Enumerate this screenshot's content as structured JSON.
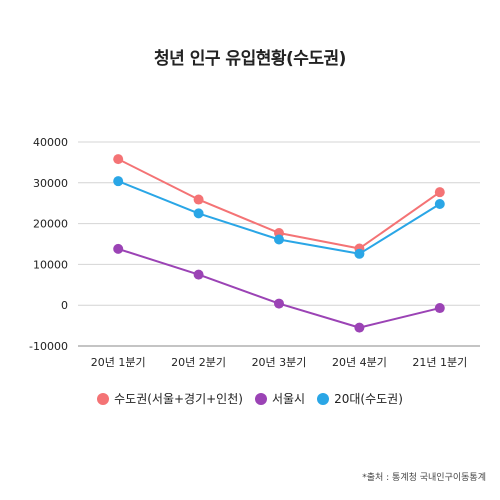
{
  "colors": {
    "accent_red": "#f47375",
    "accent_purple": "#9b43b5",
    "accent_blue": "#2aa6e6"
  },
  "source_note": "*출처 : 통계청 국내인구이동통계",
  "chart_data": {
    "type": "line",
    "title": "청년 인구 유입현황(수도권)",
    "categories": [
      "20년 1분기",
      "20년 2분기",
      "20년 3분기",
      "20년 4분기",
      "21년 1분기"
    ],
    "yticks": [
      "40000",
      "30000",
      "20000",
      "10000",
      "0",
      "-10000"
    ],
    "ylim": [
      -10000,
      40000
    ],
    "grid": true,
    "legend_position": "bottom",
    "series": [
      {
        "name": "수도권(서울+경기+인천)",
        "color": "#f47375",
        "values": [
          35800,
          25900,
          17700,
          13900,
          27700
        ]
      },
      {
        "name": "서울시",
        "color": "#9b43b5",
        "values": [
          13800,
          7500,
          400,
          -5500,
          -700
        ]
      },
      {
        "name": "20대(수도권)",
        "color": "#2aa6e6",
        "values": [
          30400,
          22500,
          16100,
          12600,
          24800
        ]
      }
    ]
  }
}
